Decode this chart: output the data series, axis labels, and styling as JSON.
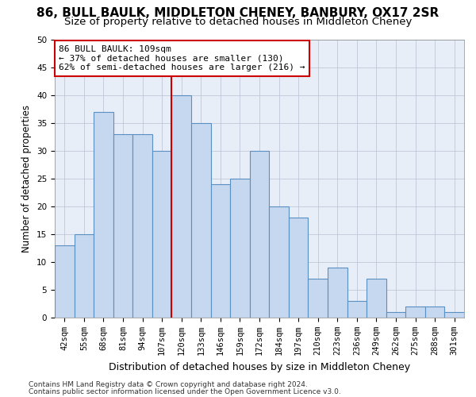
{
  "title1": "86, BULL BAULK, MIDDLETON CHENEY, BANBURY, OX17 2SR",
  "title2": "Size of property relative to detached houses in Middleton Cheney",
  "xlabel": "Distribution of detached houses by size in Middleton Cheney",
  "ylabel": "Number of detached properties",
  "categories": [
    "42sqm",
    "55sqm",
    "68sqm",
    "81sqm",
    "94sqm",
    "107sqm",
    "120sqm",
    "133sqm",
    "146sqm",
    "159sqm",
    "172sqm",
    "184sqm",
    "197sqm",
    "210sqm",
    "223sqm",
    "236sqm",
    "249sqm",
    "262sqm",
    "275sqm",
    "288sqm",
    "301sqm"
  ],
  "values": [
    13,
    15,
    37,
    33,
    33,
    30,
    40,
    35,
    24,
    25,
    30,
    20,
    18,
    7,
    9,
    3,
    7,
    1,
    2,
    2,
    1
  ],
  "bar_color": "#c5d8f0",
  "bar_edge_color": "#5a8fc2",
  "vline_x": 5.5,
  "vline_color": "#cc0000",
  "annotation_text": "86 BULL BAULK: 109sqm\n← 37% of detached houses are smaller (130)\n62% of semi-detached houses are larger (216) →",
  "annotation_box_color": "#ffffff",
  "annotation_box_edge": "#cc0000",
  "ylim": [
    0,
    50
  ],
  "yticks": [
    0,
    5,
    10,
    15,
    20,
    25,
    30,
    35,
    40,
    45,
    50
  ],
  "grid_color": "#c0c8d8",
  "bg_color": "#e8eef8",
  "footer1": "Contains HM Land Registry data © Crown copyright and database right 2024.",
  "footer2": "Contains public sector information licensed under the Open Government Licence v3.0.",
  "title1_fontsize": 11,
  "title2_fontsize": 9.5,
  "xlabel_fontsize": 9,
  "ylabel_fontsize": 8.5,
  "tick_fontsize": 7.5,
  "ann_fontsize": 8,
  "footer_fontsize": 6.5
}
